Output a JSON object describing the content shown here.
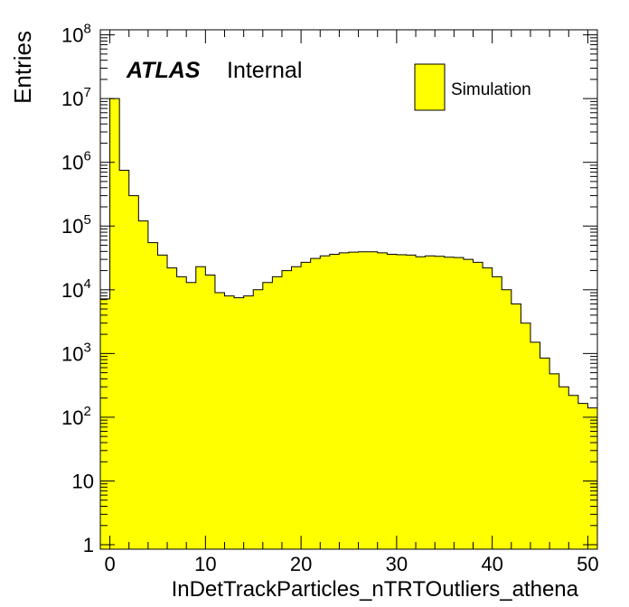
{
  "chart_data": {
    "type": "bar",
    "histogram": true,
    "title": "",
    "xlabel": "InDetTrackParticles_nTRTOutliers_athena",
    "ylabel": "Entries",
    "xlim": [
      -1,
      51
    ],
    "ylim": [
      0.85,
      120000000
    ],
    "yscale": "log",
    "grid": false,
    "legend_position": "top-right",
    "fill_color": "#ffff00",
    "line_color": "#000000",
    "x_ticks": [
      0,
      10,
      20,
      30,
      40,
      50
    ],
    "x_tick_labels": [
      "0",
      "10",
      "20",
      "30",
      "40",
      "50"
    ],
    "y_ticks": [
      1,
      10,
      100,
      1000,
      10000,
      100000,
      1000000,
      10000000,
      100000000
    ],
    "y_tick_labels": [
      {
        "base": "1",
        "exp": ""
      },
      {
        "base": "10",
        "exp": ""
      },
      {
        "base": "10",
        "exp": "2"
      },
      {
        "base": "10",
        "exp": "3"
      },
      {
        "base": "10",
        "exp": "4"
      },
      {
        "base": "10",
        "exp": "5"
      },
      {
        "base": "10",
        "exp": "6"
      },
      {
        "base": "10",
        "exp": "7"
      },
      {
        "base": "10",
        "exp": "8"
      }
    ],
    "bin_low_edges": [
      -1,
      0,
      1,
      2,
      3,
      4,
      5,
      6,
      7,
      8,
      9,
      10,
      11,
      12,
      13,
      14,
      15,
      16,
      17,
      18,
      19,
      20,
      21,
      22,
      23,
      24,
      25,
      26,
      27,
      28,
      29,
      30,
      31,
      32,
      33,
      34,
      35,
      36,
      37,
      38,
      39,
      40,
      41,
      42,
      43,
      44,
      45,
      46,
      47,
      48,
      49,
      50
    ],
    "bin_width": 1,
    "series": [
      {
        "name": "Simulation",
        "values": [
          7200,
          10000000,
          750000,
          300000,
          120000,
          55000,
          35000,
          22000,
          16000,
          13000,
          23000,
          17000,
          9000,
          8000,
          7500,
          8000,
          10000,
          13000,
          16000,
          20000,
          23000,
          27000,
          31000,
          34000,
          36000,
          38000,
          39000,
          39500,
          39500,
          38000,
          36000,
          35500,
          35000,
          33000,
          34000,
          33500,
          32500,
          32000,
          30000,
          27000,
          22000,
          16000,
          10000,
          6000,
          3000,
          1500,
          850,
          480,
          300,
          220,
          165,
          140
        ]
      }
    ]
  },
  "annotations": {
    "atlas": "ATLAS",
    "internal": "Internal"
  },
  "legend": {
    "entries": [
      {
        "label": "Simulation",
        "color": "#ffff00"
      }
    ]
  }
}
